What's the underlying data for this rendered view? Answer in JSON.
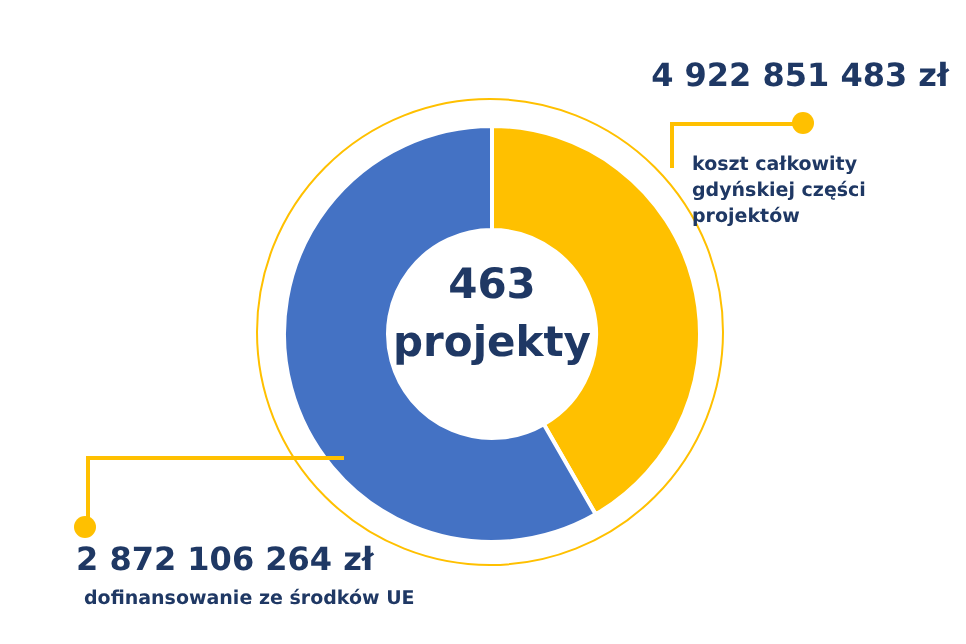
{
  "chart_data": {
    "type": "donut",
    "categories": [
      null,
      null
    ],
    "values": [
      41.7,
      58.3
    ],
    "colors": [
      "#ffc000",
      "#4472c4"
    ],
    "legend": false,
    "annotations": [
      "463 projekty",
      "4 922 851 483 zł",
      "koszt całkowity gdyńskiej części projektów",
      "2 872 106 264 zł",
      "dofinansowanie ze środków UE"
    ]
  }
}
